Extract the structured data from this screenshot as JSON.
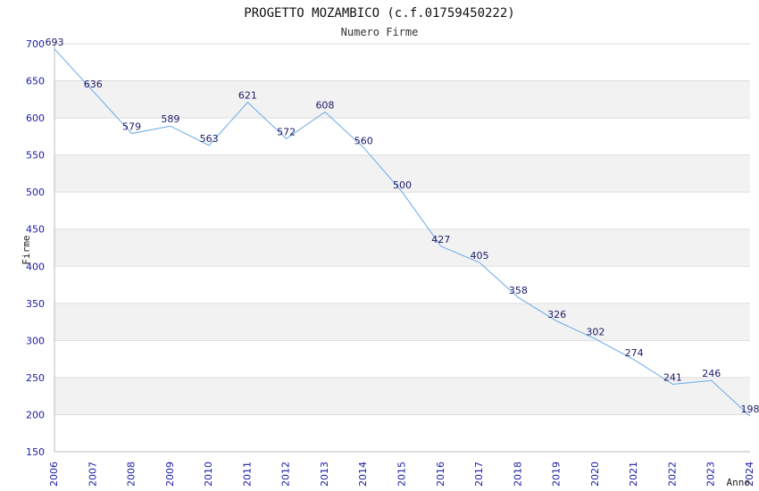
{
  "chart_data": {
    "type": "line",
    "title": "PROGETTO MOZAMBICO (c.f.01759450222)",
    "subtitle": "Numero Firme",
    "xlabel": "Anno",
    "ylabel": "Firme",
    "ylim": [
      150,
      700
    ],
    "yticks": [
      "150",
      "200",
      "250",
      "300",
      "350",
      "400",
      "450",
      "500",
      "550",
      "600",
      "650",
      "700"
    ],
    "x": [
      "2006",
      "2007",
      "2008",
      "2009",
      "2010",
      "2011",
      "2012",
      "2013",
      "2014",
      "2015",
      "2016",
      "2017",
      "2018",
      "2019",
      "2020",
      "2021",
      "2022",
      "2023",
      "2024"
    ],
    "values": [
      693,
      636,
      579,
      589,
      563,
      621,
      572,
      608,
      560,
      500,
      427,
      405,
      358,
      326,
      302,
      274,
      241,
      246,
      198
    ],
    "labels": [
      "693",
      "636",
      "579",
      "589",
      "563",
      "621",
      "572",
      "608",
      "560",
      "500",
      "427",
      "405",
      "358",
      "326",
      "302",
      "274",
      "241",
      "246",
      "198"
    ],
    "colors": {
      "line": "#6aa8e8",
      "band": "#f2f2f2",
      "grid": "#dddddd",
      "axis": "#bbbbbb",
      "tick_text": "#1a1aa6",
      "label_text": "#1a1a66"
    },
    "grid": true
  }
}
